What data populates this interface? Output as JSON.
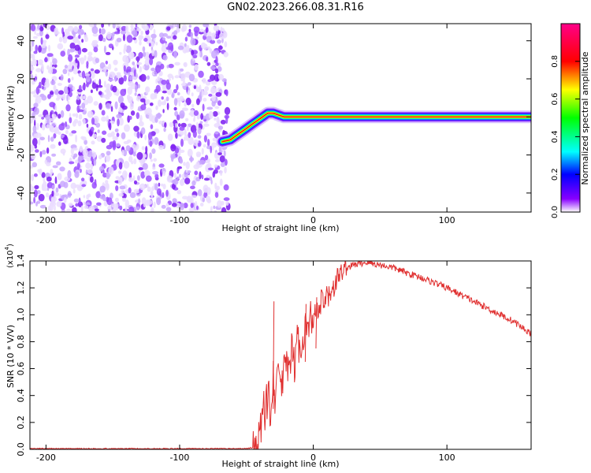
{
  "title": "GN02.2023.266.08.31.R16",
  "chart_data": [
    {
      "type": "heatmap",
      "xlabel": "Height of straight line (km)",
      "ylabel": "Frequency (Hz)",
      "xlim": [
        -212,
        163
      ],
      "ylim": [
        -50,
        49
      ],
      "xticks": [
        -200,
        -100,
        0,
        100
      ],
      "yticks": [
        -40,
        -20,
        0,
        20,
        40
      ],
      "noise_region_x": [
        -212,
        -63
      ],
      "ridge": {
        "x": [
          -68,
          -62,
          -58,
          -54,
          -50,
          -46,
          -42,
          -38,
          -34,
          -30,
          -26,
          -22,
          -18,
          -14,
          -10,
          -5,
          0,
          20,
          60,
          100,
          140,
          163
        ],
        "y": [
          -13,
          -12,
          -10,
          -8,
          -6,
          -4,
          -2,
          0,
          2,
          2,
          1,
          0,
          0,
          0,
          0,
          0,
          0,
          0,
          0,
          0,
          0,
          0
        ]
      },
      "colorbar": {
        "label": "Normalized spectral amplitude",
        "range": [
          0,
          1
        ],
        "ticks": [
          "0.0",
          "0.2",
          "0.4",
          "0.6",
          "0.8"
        ],
        "tick_values": [
          0,
          0.2,
          0.4,
          0.6,
          0.8
        ],
        "colors": [
          "#ffffff",
          "#8800ff",
          "#0000ff",
          "#00ffff",
          "#00ff00",
          "#ffff00",
          "#ff0000",
          "#ff0088"
        ]
      }
    },
    {
      "type": "line",
      "xlabel": "Height of straight line (km)",
      "ylabel": "SNR (10 * V/V)",
      "multiplier": "(x10",
      "multiplier_exp": "4",
      "xlim": [
        -212,
        163
      ],
      "ylim": [
        0,
        1.4
      ],
      "xticks": [
        -200,
        -100,
        0,
        100
      ],
      "yticks": [
        0.0,
        0.2,
        0.4,
        0.6,
        0.8,
        1.0,
        1.2,
        1.4
      ],
      "ytick_labels": [
        "0.0",
        "0.2",
        "0.4",
        "0.6",
        "0.8",
        "1.0",
        "1.2",
        "1.4"
      ],
      "color": "#e03030",
      "series": [
        {
          "x": [
            -212,
            -50,
            -42,
            -40,
            -38,
            -36,
            -34,
            -32,
            -30,
            -28,
            -26,
            -24,
            -22,
            -20,
            -18,
            -16,
            -14,
            -12,
            -10,
            -8,
            -6,
            -4,
            -2,
            0,
            2,
            4,
            6,
            8,
            10,
            12,
            14,
            16,
            18,
            20,
            22,
            25,
            30,
            35,
            40,
            50,
            60,
            70,
            80,
            90,
            100,
            110,
            120,
            130,
            140,
            150,
            160,
            163
          ],
          "y": [
            0.005,
            0.005,
            0.02,
            0.05,
            0.35,
            0.18,
            0.45,
            0.3,
            0.6,
            0.32,
            0.65,
            0.45,
            0.55,
            0.7,
            0.52,
            0.75,
            0.6,
            0.85,
            0.72,
            0.78,
            0.95,
            0.85,
            1.0,
            0.9,
            1.05,
            0.98,
            1.1,
            1.05,
            1.15,
            1.12,
            1.22,
            1.2,
            1.28,
            1.3,
            1.33,
            1.35,
            1.37,
            1.38,
            1.39,
            1.37,
            1.35,
            1.31,
            1.28,
            1.24,
            1.2,
            1.15,
            1.1,
            1.05,
            1.0,
            0.95,
            0.88,
            0.86
          ]
        }
      ],
      "spikes": [
        {
          "x": -30,
          "y": 1.1
        },
        {
          "x": -6,
          "y": 1.08
        },
        {
          "x": 2,
          "y": 1.13
        }
      ]
    }
  ]
}
